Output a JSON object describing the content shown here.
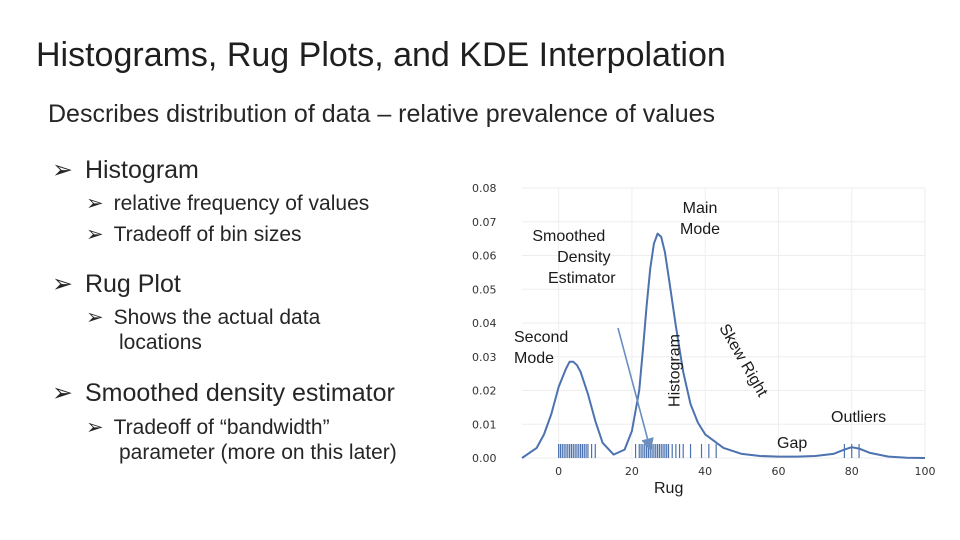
{
  "slide": {
    "title": "Histograms, Rug Plots, and KDE Interpolation",
    "subtitle": "Describes distribution of data – relative prevalence of values"
  },
  "bullets": {
    "histogram": {
      "label": "Histogram",
      "subs": [
        "relative frequency of values",
        "Tradeoff of bin sizes"
      ]
    },
    "rug": {
      "label": "Rug Plot",
      "subs": [
        "Shows the actual data locations"
      ],
      "sub_line2": "locations",
      "sub_line1": "Shows the actual data"
    },
    "kde": {
      "label": "Smoothed density estimator",
      "sub_line1": "Tradeoff of “bandwidth”",
      "sub_line2": "parameter (more on this later)"
    },
    "arrow_glyph": "➢"
  },
  "annotations": {
    "main_mode": "Main Mode",
    "main_mode_l1": "Main",
    "main_mode_l2": "Mode",
    "smoothed_l1": "Smoothed",
    "smoothed_l2": "Density",
    "smoothed_l3": "Estimator",
    "second_l1": "Second",
    "second_l2": "Mode",
    "histogram": "Histogram",
    "skew_right": "Skew Right",
    "outliers": "Outliers",
    "gap": "Gap",
    "rug": "Rug"
  },
  "colors": {
    "curve": "#4c72b0",
    "arrow": "#6a8fbf",
    "grid": "#ffffff",
    "plot_bg": "#ffffff"
  },
  "chart_data": {
    "type": "line",
    "title": "",
    "xlabel": "",
    "ylabel": "",
    "xlim": [
      -10,
      100
    ],
    "ylim": [
      0,
      0.08
    ],
    "xticks": [
      0,
      20,
      40,
      60,
      80,
      100
    ],
    "yticks": [
      0.0,
      0.01,
      0.02,
      0.03,
      0.04,
      0.05,
      0.06,
      0.07,
      0.08
    ],
    "ytick_labels": [
      "0.00",
      "0.01",
      "0.02",
      "0.03",
      "0.04",
      "0.05",
      "0.06",
      "0.07",
      "0.08"
    ],
    "series": [
      {
        "x": [
          -10,
          -6,
          -4,
          -2,
          0,
          2,
          3,
          4,
          5,
          6,
          8,
          10,
          12,
          15,
          18,
          20,
          22,
          23,
          24,
          25,
          26,
          27,
          28,
          29,
          30,
          32,
          34,
          36,
          38,
          40,
          45,
          50,
          55,
          60,
          65,
          70,
          75,
          78,
          80,
          82,
          85,
          90,
          95,
          100
        ],
        "y": [
          0.0,
          0.003,
          0.007,
          0.013,
          0.021,
          0.0265,
          0.0285,
          0.0285,
          0.0275,
          0.0255,
          0.019,
          0.011,
          0.0045,
          0.001,
          0.0025,
          0.008,
          0.02,
          0.032,
          0.045,
          0.056,
          0.0635,
          0.0665,
          0.0655,
          0.061,
          0.054,
          0.039,
          0.0255,
          0.016,
          0.0105,
          0.007,
          0.003,
          0.0012,
          0.0006,
          0.0004,
          0.0004,
          0.0006,
          0.0012,
          0.0025,
          0.0032,
          0.0028,
          0.0015,
          0.0004,
          0.0001,
          0.0
        ]
      }
    ],
    "rug": [
      0,
      0.5,
      1,
      1.5,
      2,
      2.5,
      3,
      3.5,
      4,
      4.5,
      5,
      5.5,
      6,
      6.5,
      7,
      7.5,
      8,
      9,
      10,
      21,
      22,
      22.5,
      23,
      23.5,
      24,
      24.5,
      25,
      25.5,
      26,
      26.5,
      27,
      27.5,
      28,
      28.5,
      29,
      29.5,
      30,
      31,
      32,
      33,
      34,
      36,
      39,
      41,
      43,
      78,
      80,
      82
    ],
    "grid": true,
    "legend": "none"
  }
}
